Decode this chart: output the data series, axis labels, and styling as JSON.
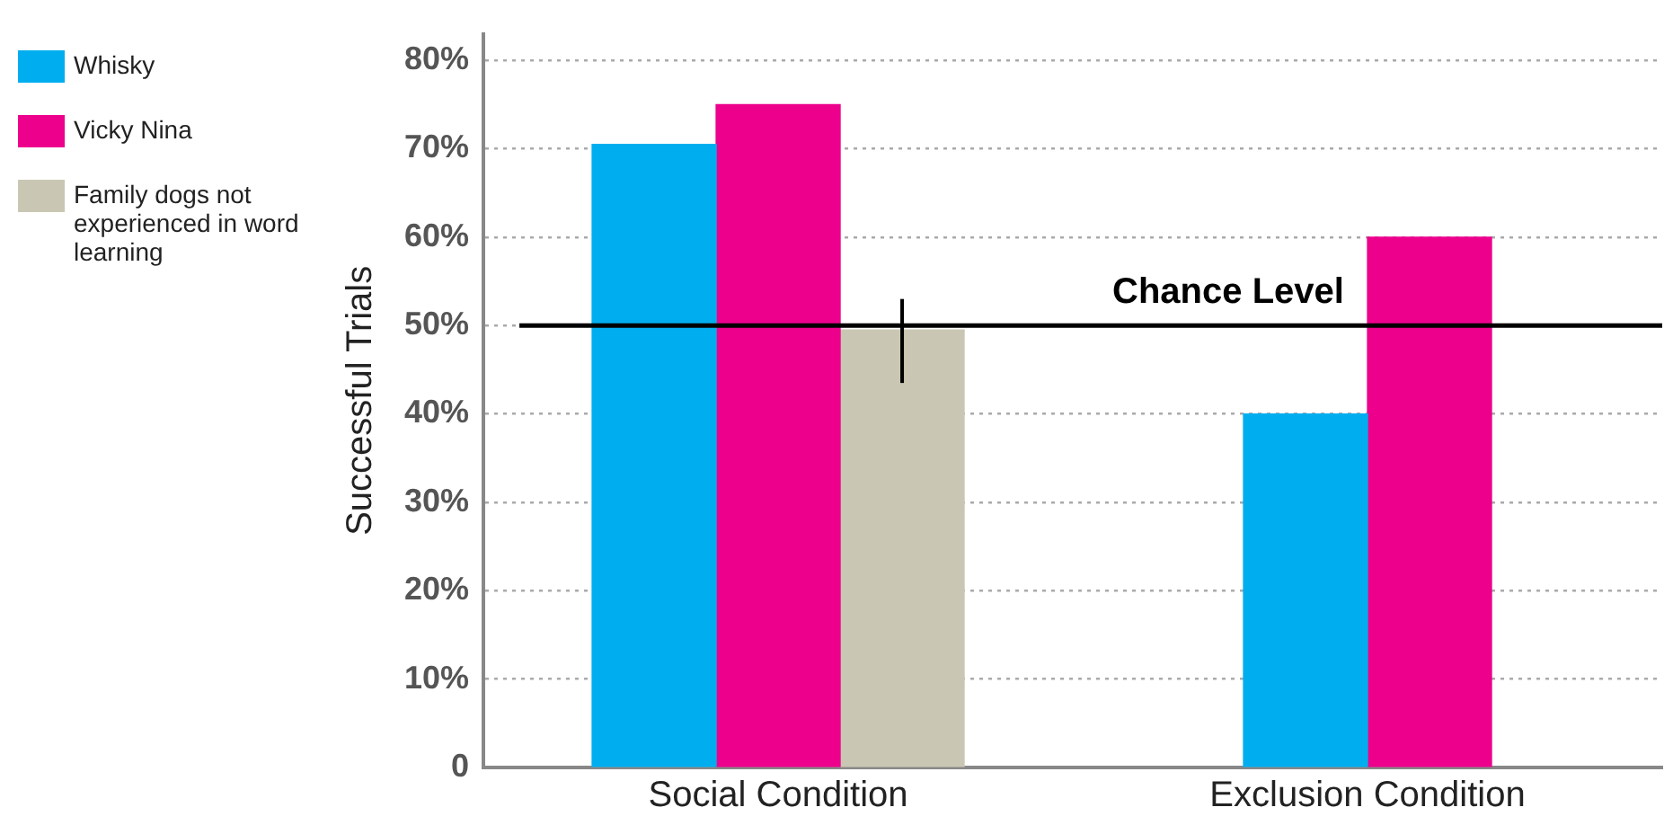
{
  "chart_data": {
    "type": "bar",
    "ylabel": "Successful Trials",
    "categories": [
      "Social Condition",
      "Exclusion Condition"
    ],
    "series": [
      {
        "name": "Whisky",
        "color": "#00aeef",
        "values": [
          70.5,
          40
        ]
      },
      {
        "name": "Vicky Nina",
        "color": "#ec008c",
        "values": [
          75,
          60
        ]
      },
      {
        "name": "Family dogs not experienced in word learning",
        "color": "#c9c7b3",
        "values": [
          49.5,
          null
        ],
        "errors": [
          [
            43.5,
            53
          ],
          null
        ]
      }
    ],
    "ylim": [
      0,
      83
    ],
    "yticks": [
      {
        "value": 0,
        "label": "0"
      },
      {
        "value": 10,
        "label": "10%"
      },
      {
        "value": 20,
        "label": "20%"
      },
      {
        "value": 30,
        "label": "30%"
      },
      {
        "value": 40,
        "label": "40%"
      },
      {
        "value": 50,
        "label": "50%"
      },
      {
        "value": 60,
        "label": "60%"
      },
      {
        "value": 70,
        "label": "70%"
      },
      {
        "value": 80,
        "label": "80%"
      }
    ],
    "ref_lines": [
      {
        "axis": "y",
        "value": 50,
        "label": "Chance Level",
        "color": "#000000"
      }
    ],
    "grid": "y",
    "legend": "left"
  }
}
